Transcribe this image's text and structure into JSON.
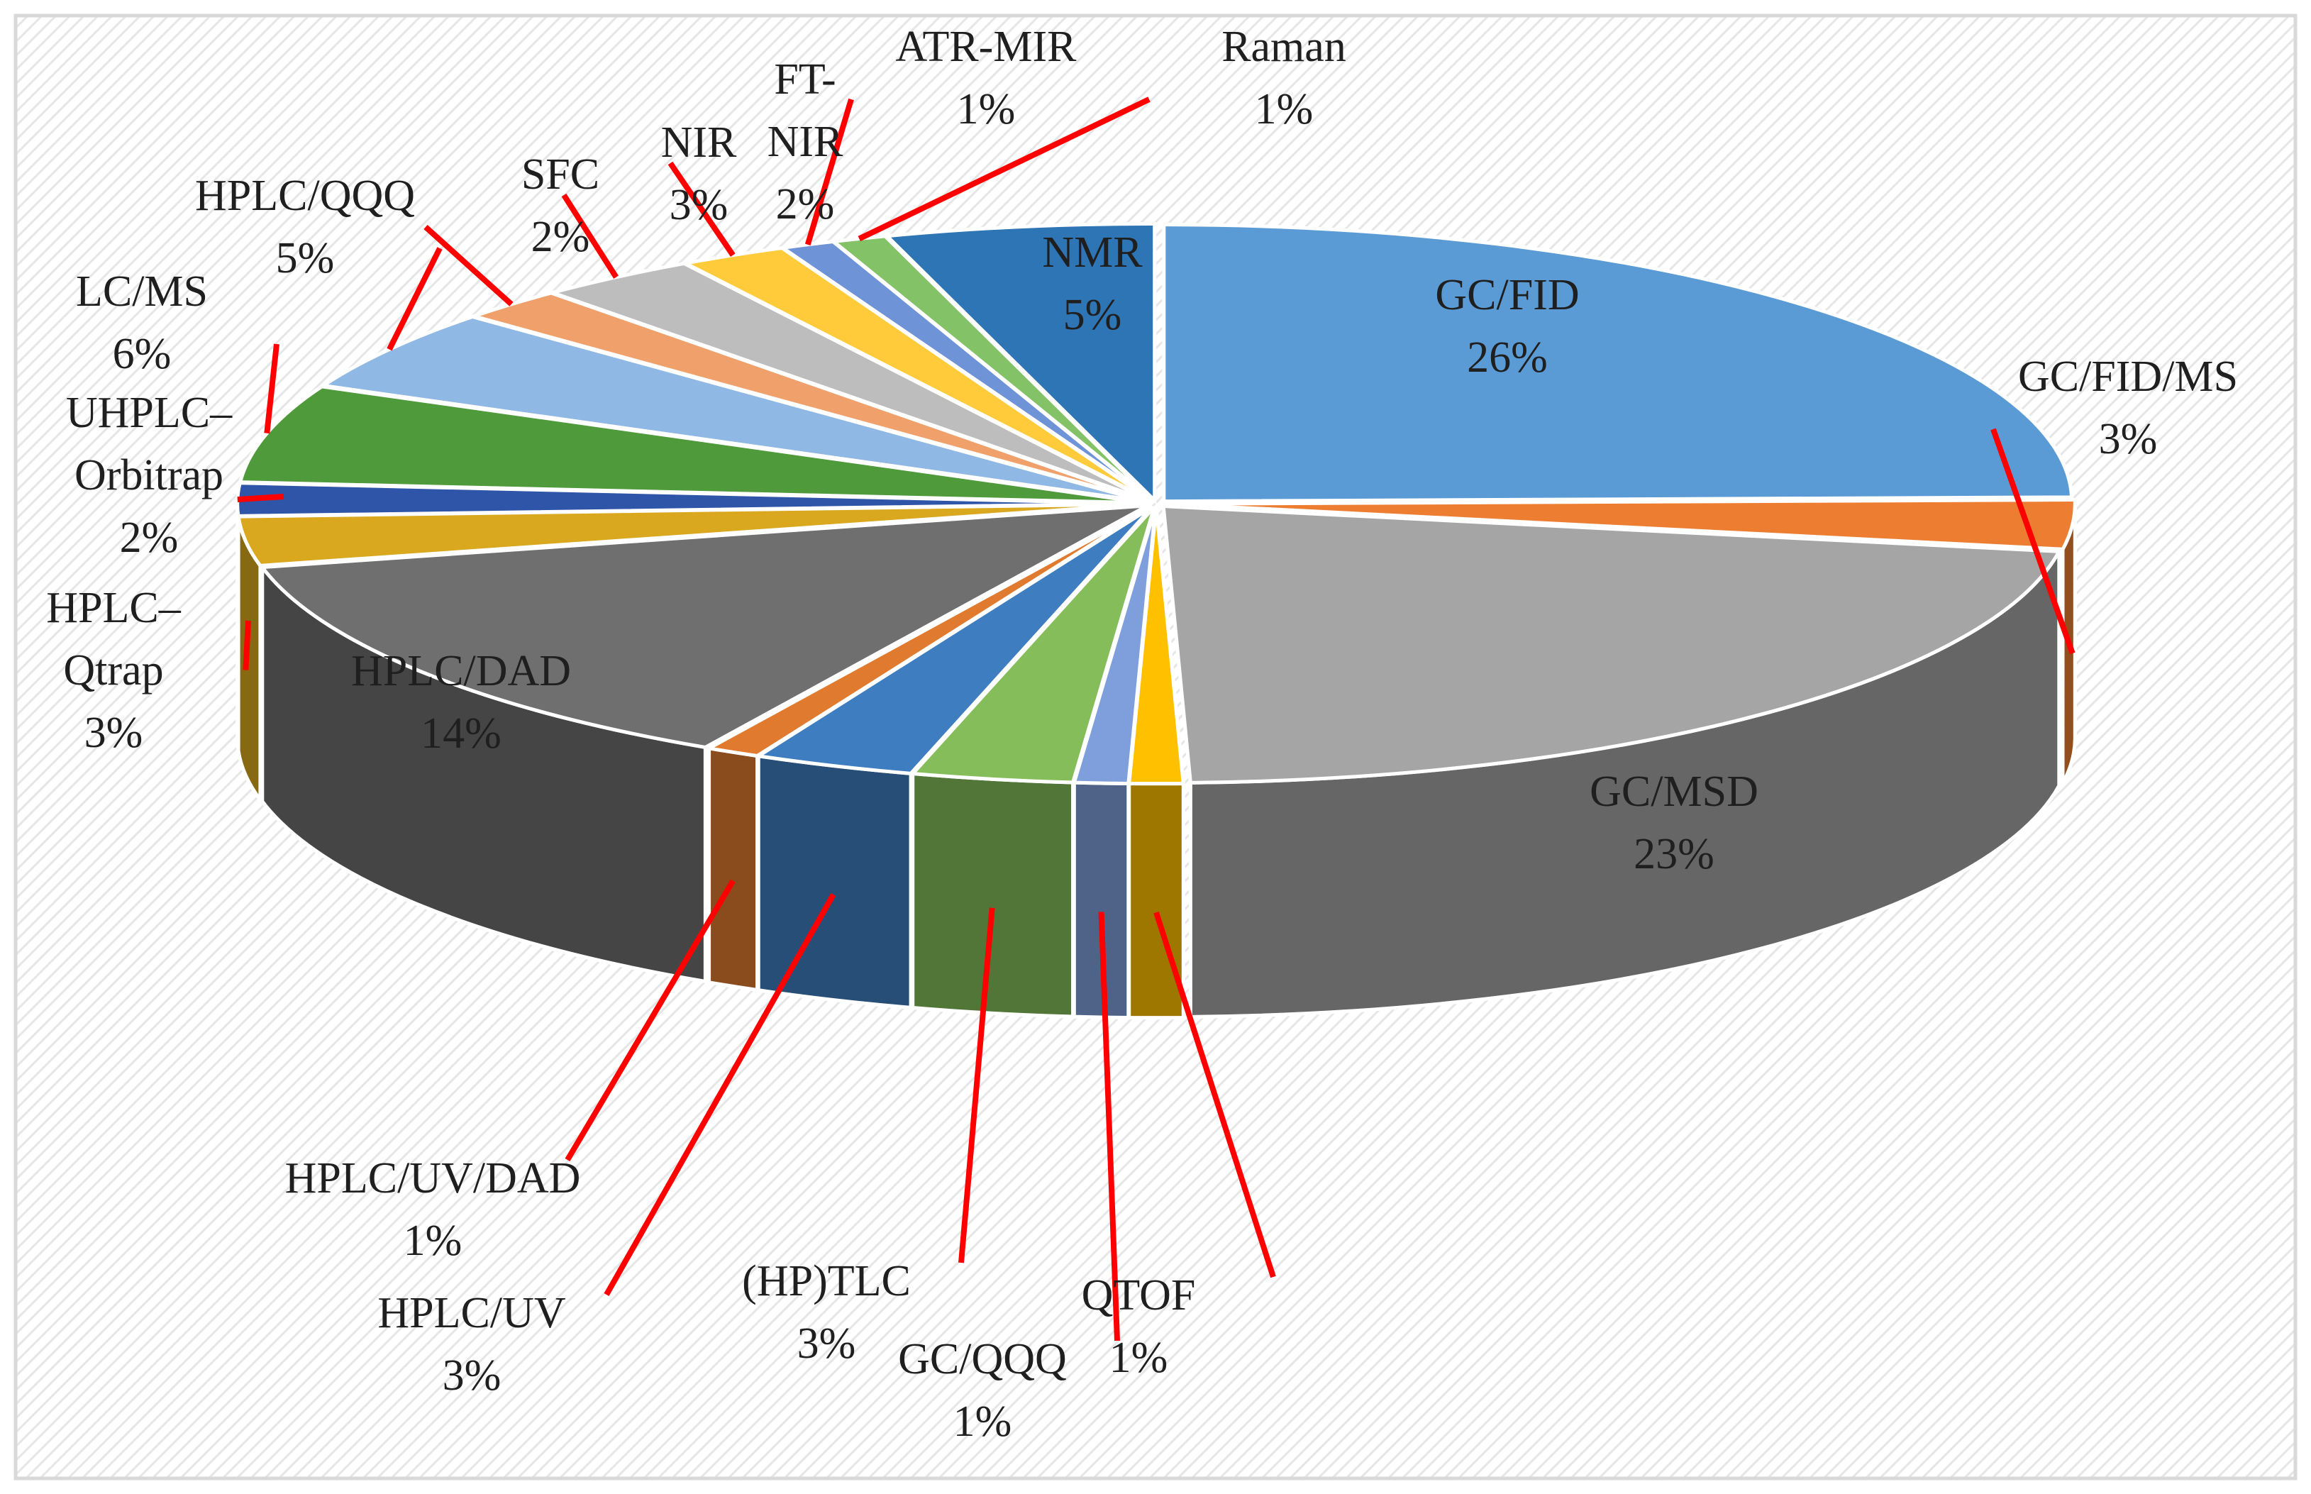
{
  "chart_data": {
    "type": "pie",
    "title": "",
    "unit": "%",
    "slices": [
      {
        "label": "GC/FID",
        "value": 26,
        "display": "26%",
        "color": "#5b9bd5"
      },
      {
        "label": "GC/FID/MS",
        "value": 3,
        "display": "3%",
        "color": "#ed7d31"
      },
      {
        "label": "GC/MSD",
        "value": 23,
        "display": "23%",
        "color": "#a5a5a5"
      },
      {
        "label": "QTOF",
        "value": 1,
        "display": "1%",
        "color": "#ffc000"
      },
      {
        "label": "GC/QQQ",
        "value": 1,
        "display": "1%",
        "color": "#7f9fdc"
      },
      {
        "label": "(HP)TLC",
        "value": 3,
        "display": "3%",
        "color": "#84bd5a"
      },
      {
        "label": "HPLC/UV",
        "value": 3,
        "display": "3%",
        "color": "#3d7dc0"
      },
      {
        "label": "HPLC/UV/DAD",
        "value": 1,
        "display": "1%",
        "color": "#e07a2e"
      },
      {
        "label": "HPLC/DAD",
        "value": 14,
        "display": "14%",
        "color": "#6f6f6f"
      },
      {
        "label": "HPLC–Qtrap",
        "value": 3,
        "display": "3%",
        "color": "#d9a81f"
      },
      {
        "label": "UHPLC–Orbitrap",
        "value": 2,
        "display": "2%",
        "color": "#2f55a8"
      },
      {
        "label": "LC/MS",
        "value": 6,
        "display": "6%",
        "color": "#4f9a3a"
      },
      {
        "label": "HPLC/QQQ",
        "value": 5,
        "display": "5%",
        "color": "#8fb8e4"
      },
      {
        "label": "SFC",
        "value": 2,
        "display": "2%",
        "color": "#f0a06a"
      },
      {
        "label": "NIR",
        "value": 3,
        "display": "3%",
        "color": "#bdbdbd"
      },
      {
        "label": "FT-NIR",
        "value": 2,
        "display": "2%",
        "color": "#ffcb3a"
      },
      {
        "label": "ATR-MIR",
        "value": 1,
        "display": "1%",
        "color": "#6e93d6"
      },
      {
        "label": "Raman",
        "value": 1,
        "display": "1%",
        "color": "#83c267"
      },
      {
        "label": "NMR",
        "value": 5,
        "display": "5%",
        "color": "#2e75b6"
      }
    ],
    "legend": "none",
    "style": "3d-exploded-pie",
    "leader_line_color": "#ff0000"
  }
}
